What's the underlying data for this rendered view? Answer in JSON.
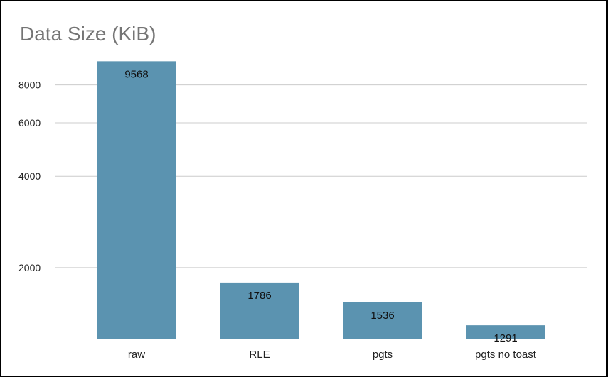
{
  "chart_data": {
    "type": "bar",
    "title": "Data Size (KiB)",
    "xlabel": "",
    "ylabel": "",
    "categories": [
      "raw",
      "RLE",
      "pgts",
      "pgts no toast"
    ],
    "values": [
      9568,
      1786,
      1536,
      1291
    ],
    "y_ticks": [
      2000,
      4000,
      6000,
      8000
    ],
    "y_tick_labels": [
      "2000",
      "4000",
      "6000",
      "8000"
    ],
    "y_scale": "log",
    "ylim": [
      1000,
      10000
    ],
    "grid": true,
    "legend": "none",
    "bar_color": "#5b93b0",
    "gridline_color": "#cccccc"
  }
}
